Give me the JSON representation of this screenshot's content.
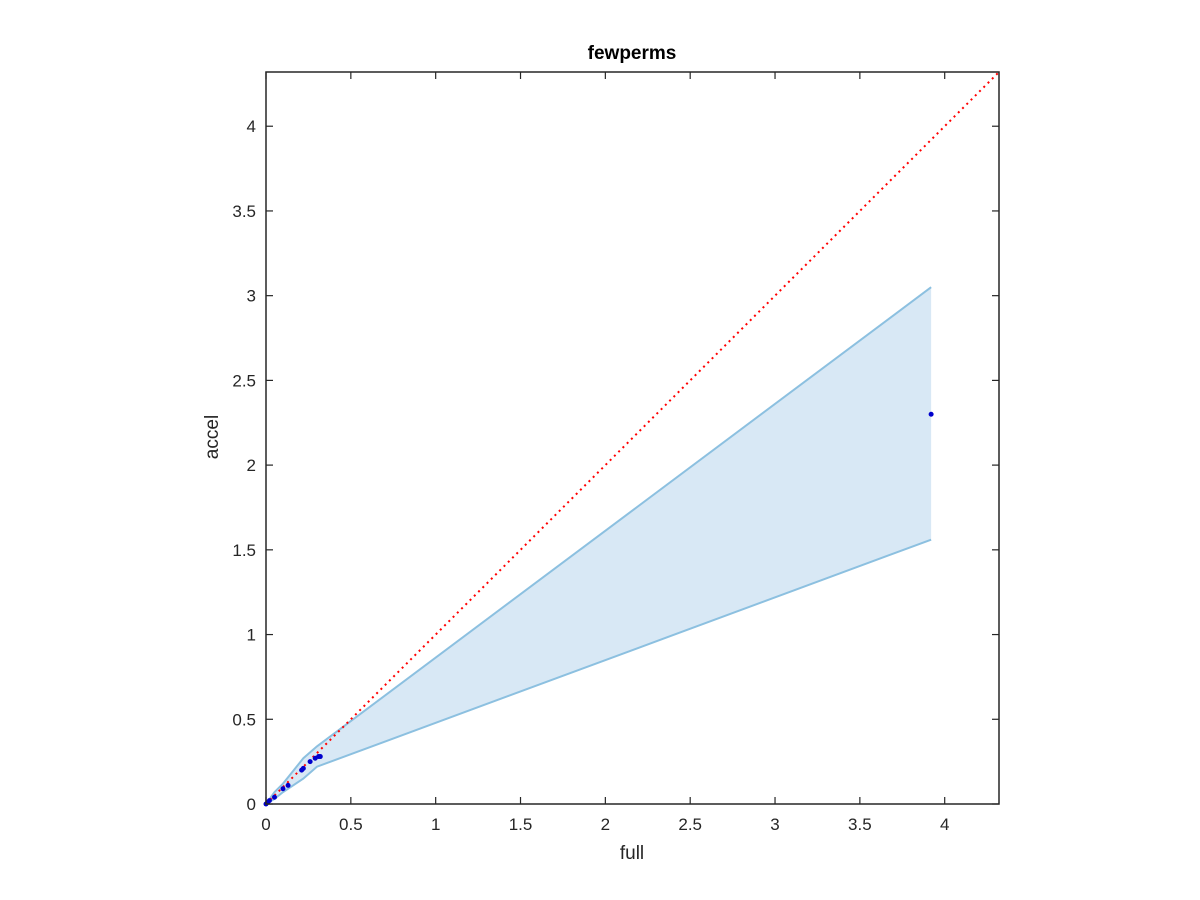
{
  "chart_data": {
    "type": "scatter",
    "title": "fewperms",
    "xlabel": "full",
    "ylabel": "accel",
    "xlim": [
      0,
      4.32
    ],
    "ylim": [
      0,
      4.32
    ],
    "xticks": [
      0,
      0.5,
      1,
      1.5,
      2,
      2.5,
      3,
      3.5,
      4
    ],
    "yticks": [
      0,
      0.5,
      1,
      1.5,
      2,
      2.5,
      3,
      3.5,
      4
    ],
    "xtick_labels": [
      "0",
      "0.5",
      "1",
      "1.5",
      "2",
      "2.5",
      "3",
      "3.5",
      "4"
    ],
    "ytick_labels": [
      "0",
      "0.5",
      "1",
      "1.5",
      "2",
      "2.5",
      "3",
      "3.5",
      "4"
    ],
    "grid": false,
    "legend": "none",
    "points": {
      "color": "#0000cc",
      "x": [
        0.0,
        0.01,
        0.02,
        0.05,
        0.1,
        0.13,
        0.21,
        0.22,
        0.26,
        0.29,
        0.31,
        0.32,
        3.92
      ],
      "y": [
        0.0,
        0.01,
        0.02,
        0.04,
        0.09,
        0.11,
        0.2,
        0.21,
        0.25,
        0.27,
        0.28,
        0.28,
        2.3
      ]
    },
    "band": {
      "fill": "#d8e8f5",
      "line": "#8cc0e0",
      "x": [
        0.0,
        0.05,
        0.1,
        0.22,
        0.3,
        3.92
      ],
      "upper": [
        0.0,
        0.07,
        0.12,
        0.27,
        0.34,
        3.05
      ],
      "lower": [
        0.0,
        0.03,
        0.07,
        0.15,
        0.22,
        1.56
      ]
    },
    "reference_line": {
      "color": "#ff0000",
      "style": "dotted",
      "x": [
        0,
        4.32
      ],
      "y": [
        0,
        4.32
      ]
    }
  }
}
